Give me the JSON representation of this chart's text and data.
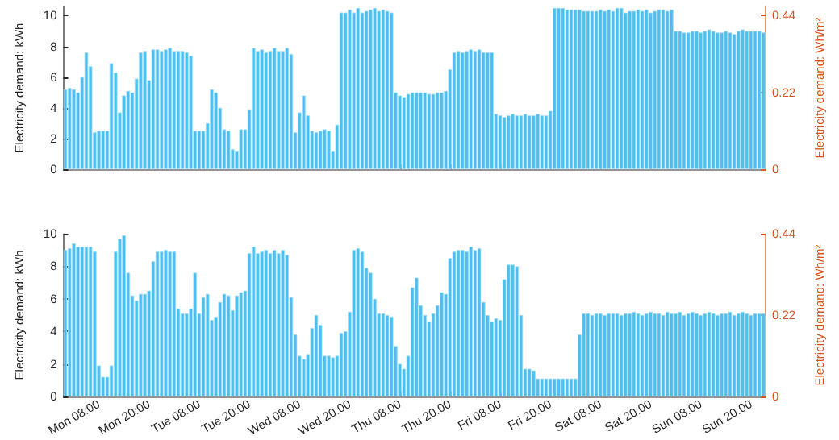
{
  "chart_data": [
    {
      "type": "bar",
      "ylabel": "Electricity demand: kWh",
      "y2label": "Electricity demand: Wh/m²",
      "tick_labels": "y",
      "categories": [
        null,
        null,
        null,
        null,
        null,
        null,
        null,
        null,
        null,
        null,
        null,
        null,
        null,
        null,
        null,
        null,
        null,
        null,
        null,
        null,
        null,
        null,
        null,
        null,
        null,
        null,
        null,
        null,
        null,
        null,
        null,
        null,
        null,
        null,
        null,
        null,
        null,
        null,
        null,
        null,
        null,
        null,
        null,
        null,
        null,
        null,
        null,
        null,
        null,
        null,
        null,
        null,
        null,
        null,
        null,
        null,
        null,
        null,
        null,
        null,
        null,
        null,
        null,
        null,
        null,
        null,
        null,
        null,
        null,
        null,
        null,
        null,
        null,
        null,
        null,
        null,
        null,
        null,
        null,
        null,
        null,
        null,
        null,
        null,
        null,
        null,
        null,
        null,
        null,
        null,
        null,
        null,
        null,
        null,
        null,
        null,
        null,
        null,
        null,
        null,
        null,
        null,
        null,
        null,
        null,
        null,
        null,
        null,
        null,
        null,
        null,
        null,
        null,
        null,
        null,
        null,
        null,
        null,
        null,
        null,
        null,
        null,
        null,
        null,
        null,
        null,
        null,
        null,
        null,
        null,
        null,
        null,
        null,
        null,
        null,
        null,
        null,
        null,
        null,
        null,
        null,
        null,
        null,
        null,
        null,
        null,
        null,
        null,
        null,
        null,
        null,
        null,
        null,
        null,
        null,
        null,
        null,
        null,
        null,
        null,
        null,
        null,
        null,
        null,
        null,
        null,
        null,
        null
      ],
      "series": [
        {
          "color": "#4dbeee",
          "values": [
            5.2,
            5.3,
            5.2,
            5.0,
            6.0,
            7.6,
            6.7,
            2.4,
            2.5,
            2.5,
            2.5,
            6.9,
            6.3,
            3.7,
            4.8,
            5.1,
            5.0,
            5.9,
            7.6,
            7.7,
            5.8,
            7.8,
            7.8,
            7.7,
            7.8,
            7.9,
            7.7,
            7.7,
            7.7,
            7.6,
            7.4,
            2.5,
            2.5,
            2.5,
            3.0,
            5.2,
            5.0,
            4.0,
            2.6,
            2.5,
            1.3,
            1.2,
            2.6,
            2.6,
            3.9,
            7.9,
            7.7,
            7.8,
            7.6,
            7.7,
            7.9,
            7.7,
            7.7,
            7.9,
            7.5,
            2.4,
            3.7,
            4.8,
            3.5,
            2.5,
            2.4,
            2.5,
            2.6,
            2.5,
            1.2,
            2.9,
            10.2,
            10.2,
            10.4,
            10.2,
            10.5,
            10.2,
            10.3,
            10.4,
            10.5,
            10.3,
            10.4,
            10.3,
            10.2,
            5.0,
            4.8,
            4.7,
            4.9,
            5.0,
            5.0,
            5.0,
            5.0,
            4.9,
            4.9,
            5.0,
            5.0,
            5.1,
            6.5,
            7.6,
            7.7,
            7.6,
            7.7,
            7.8,
            7.7,
            7.8,
            7.6,
            7.6,
            7.6,
            3.6,
            3.5,
            3.4,
            3.5,
            3.6,
            3.5,
            3.5,
            3.6,
            3.5,
            3.5,
            3.6,
            3.5,
            3.5,
            3.8,
            10.5,
            10.5,
            10.5,
            10.4,
            10.4,
            10.4,
            10.4,
            10.3,
            10.3,
            10.3,
            10.3,
            10.4,
            10.3,
            10.4,
            10.3,
            10.5,
            10.5,
            10.2,
            10.3,
            10.3,
            10.4,
            10.3,
            10.4,
            10.2,
            10.3,
            10.4,
            10.4,
            10.3,
            10.4,
            9.0,
            9.0,
            8.9,
            8.9,
            9.0,
            9.0,
            8.9,
            9.0,
            9.1,
            9.0,
            8.9,
            8.9,
            9.0,
            8.9,
            8.8,
            9.0,
            9.1,
            9.0,
            9.0,
            9.0,
            9.0,
            8.9
          ]
        }
      ],
      "ylim": [
        0,
        10.6
      ],
      "yticks": [
        0,
        2,
        4,
        6,
        8,
        10
      ],
      "y2lim": [
        0,
        0.466
      ],
      "y2ticks": [
        0,
        0.22,
        0.44
      ]
    },
    {
      "type": "bar",
      "ylabel": "Electricity demand: kWh",
      "y2label": "Electricity demand: Wh/m²",
      "categories": [
        null,
        null,
        null,
        null,
        null,
        null,
        null,
        null,
        "Mon 08:00",
        null,
        null,
        null,
        null,
        null,
        null,
        null,
        null,
        null,
        null,
        null,
        "Mon 20:00",
        null,
        null,
        null,
        null,
        null,
        null,
        null,
        null,
        null,
        null,
        null,
        "Tue 08:00",
        null,
        null,
        null,
        null,
        null,
        null,
        null,
        null,
        null,
        null,
        null,
        "Tue 20:00",
        null,
        null,
        null,
        null,
        null,
        null,
        null,
        null,
        null,
        null,
        null,
        "Wed 08:00",
        null,
        null,
        null,
        null,
        null,
        null,
        null,
        null,
        null,
        null,
        null,
        "Wed 20:00",
        null,
        null,
        null,
        null,
        null,
        null,
        null,
        null,
        null,
        null,
        null,
        "Thu 08:00",
        null,
        null,
        null,
        null,
        null,
        null,
        null,
        null,
        null,
        null,
        null,
        "Thu 20:00",
        null,
        null,
        null,
        null,
        null,
        null,
        null,
        null,
        null,
        null,
        null,
        "Fri 08:00",
        null,
        null,
        null,
        null,
        null,
        null,
        null,
        null,
        null,
        null,
        null,
        "Fri 20:00",
        null,
        null,
        null,
        null,
        null,
        null,
        null,
        null,
        null,
        null,
        null,
        "Sat 08:00",
        null,
        null,
        null,
        null,
        null,
        null,
        null,
        null,
        null,
        null,
        null,
        "Sat 20:00",
        null,
        null,
        null,
        null,
        null,
        null,
        null,
        null,
        null,
        null,
        null,
        "Sun 08:00",
        null,
        null,
        null,
        null,
        null,
        null,
        null,
        null,
        null,
        null,
        null,
        "Sun 20:00",
        null,
        null,
        null
      ],
      "series": [
        {
          "color": "#4dbeee",
          "values": [
            9.0,
            9.1,
            9.4,
            9.2,
            9.2,
            9.2,
            9.2,
            8.9,
            1.9,
            1.2,
            1.2,
            1.9,
            8.9,
            9.7,
            9.9,
            7.6,
            6.2,
            5.9,
            6.3,
            6.3,
            6.5,
            8.3,
            8.9,
            8.9,
            9.0,
            8.9,
            8.9,
            5.4,
            5.1,
            5.1,
            5.4,
            7.6,
            5.1,
            6.1,
            6.3,
            4.7,
            4.9,
            5.8,
            6.3,
            6.2,
            5.3,
            6.2,
            6.4,
            6.5,
            8.8,
            9.2,
            8.8,
            8.9,
            9.0,
            8.8,
            9.0,
            8.8,
            9.0,
            8.7,
            6.1,
            3.8,
            2.5,
            2.3,
            2.6,
            4.2,
            5.0,
            4.4,
            2.5,
            2.5,
            2.4,
            2.5,
            3.9,
            4.0,
            5.2,
            9.0,
            9.1,
            8.9,
            7.9,
            7.6,
            6.0,
            5.1,
            5.1,
            5.0,
            4.9,
            3.1,
            2.0,
            1.7,
            2.5,
            6.7,
            7.3,
            5.6,
            5.0,
            4.6,
            5.1,
            5.6,
            6.4,
            6.3,
            8.5,
            8.9,
            9.0,
            9.0,
            8.9,
            9.2,
            9.0,
            9.1,
            5.8,
            5.0,
            4.6,
            4.8,
            4.7,
            7.2,
            8.1,
            8.1,
            8.0,
            5.0,
            1.7,
            1.7,
            1.6,
            1.1,
            1.1,
            1.1,
            1.1,
            1.1,
            1.1,
            1.1,
            1.1,
            1.1,
            1.1,
            3.8,
            5.1,
            5.1,
            5.0,
            5.1,
            5.1,
            5.0,
            5.1,
            5.1,
            5.1,
            5.0,
            5.1,
            5.1,
            5.2,
            5.1,
            5.0,
            5.1,
            5.2,
            5.1,
            5.1,
            5.0,
            5.2,
            5.1,
            5.1,
            5.2,
            5.0,
            5.1,
            5.2,
            5.1,
            5.0,
            5.1,
            5.2,
            5.1,
            5.0,
            5.1,
            5.1,
            5.2,
            5.0,
            5.1,
            5.2,
            5.1,
            5.0,
            5.1,
            5.1,
            5.1
          ]
        }
      ],
      "ylim": [
        0,
        10
      ],
      "yticks": [
        0,
        2,
        4,
        6,
        8,
        10
      ],
      "y2lim": [
        0,
        0.44
      ],
      "y2ticks": [
        0,
        0.22,
        0.44
      ]
    }
  ]
}
